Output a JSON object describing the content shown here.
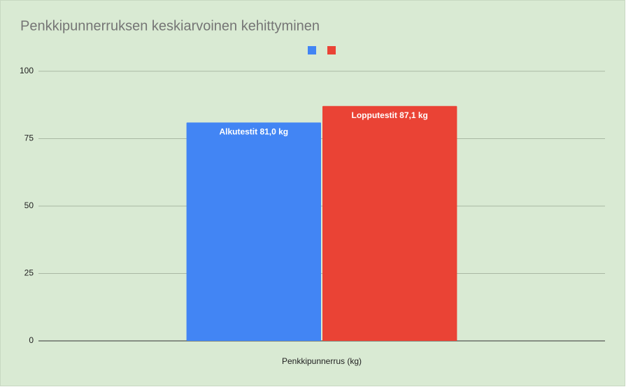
{
  "chart_data": {
    "type": "bar",
    "title": "Penkkipunnerruksen keskiarvoinen kehittyminen",
    "x_label": "Penkkipunnerrus (kg)",
    "categories": [
      "Penkkipunnerrus (kg)"
    ],
    "series": [
      {
        "color": "#4285f4",
        "values": [
          81.0
        ],
        "value_labels": [
          "Alkutestit 81,0 kg"
        ]
      },
      {
        "color": "#ea4335",
        "values": [
          87.1
        ],
        "value_labels": [
          "Lopputestit 87,1 kg"
        ]
      }
    ],
    "ylim": [
      0,
      100
    ],
    "yticks": [
      0,
      25,
      50,
      75,
      100
    ],
    "grid": true,
    "legend": "top"
  }
}
